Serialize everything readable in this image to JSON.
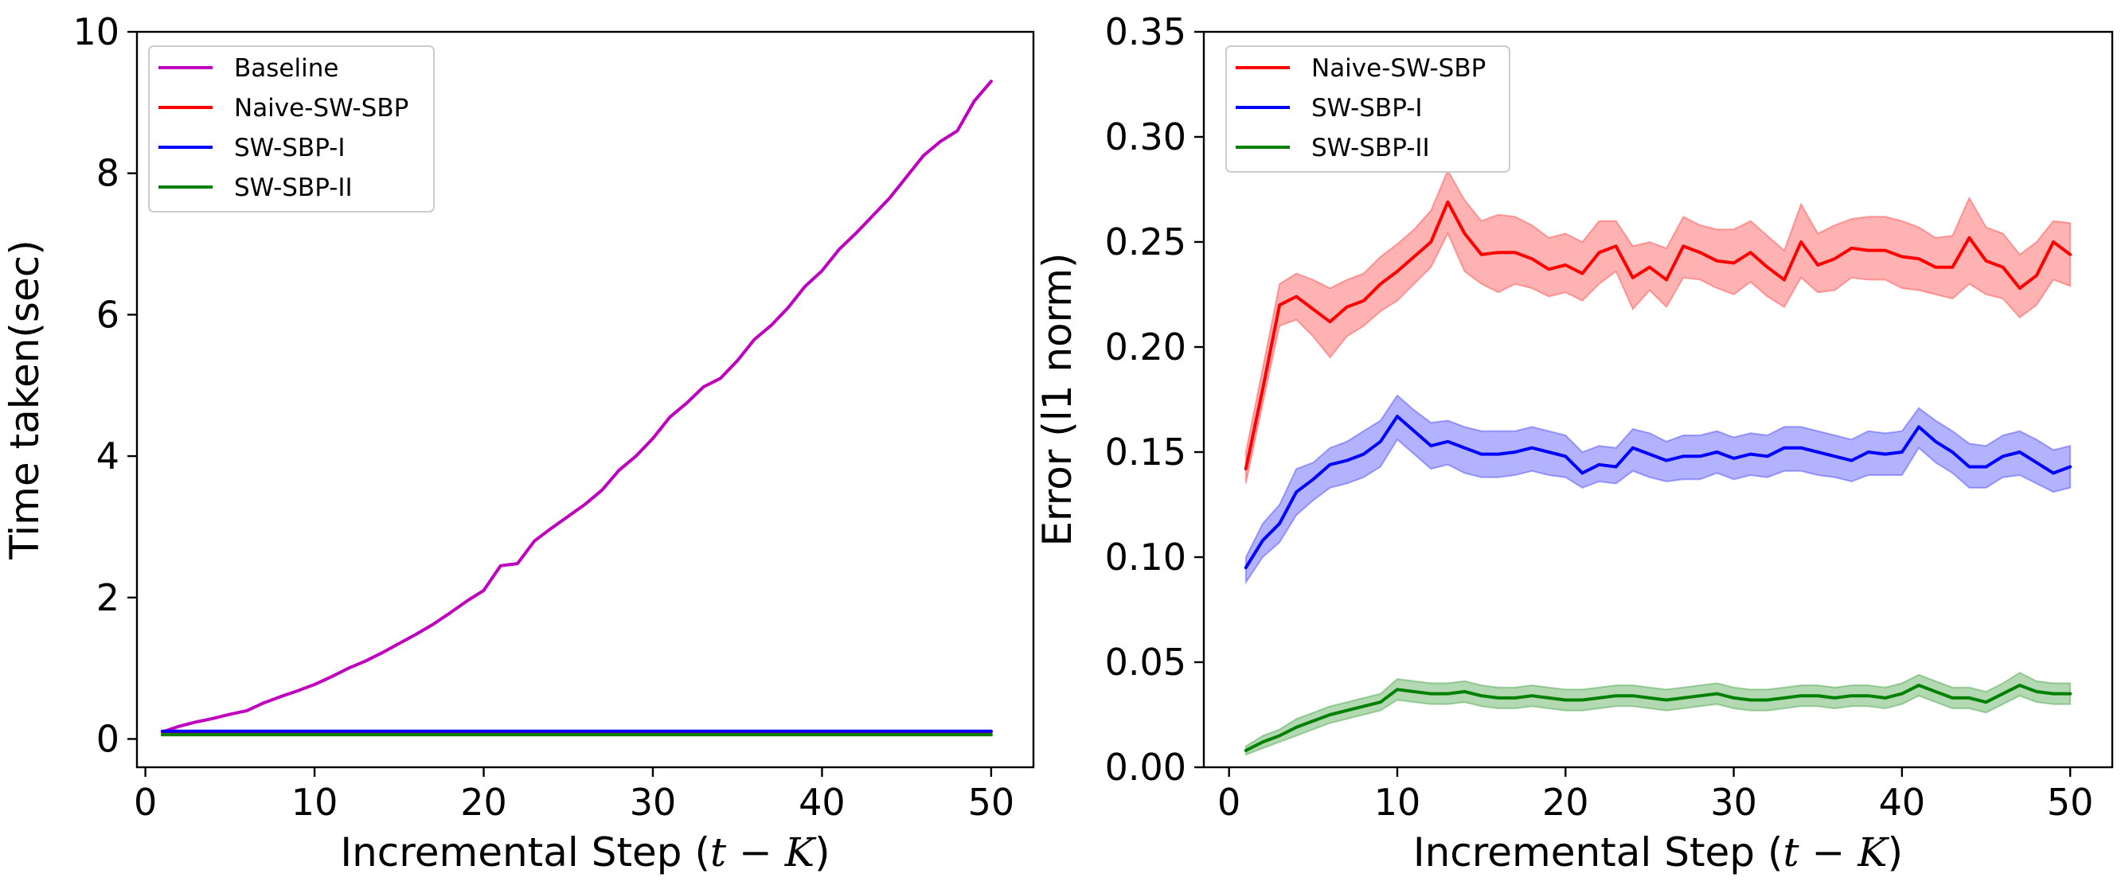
{
  "chart_data": [
    {
      "type": "line",
      "title": "",
      "xlabel_prefix": "Incremental Step (",
      "xlabel_math": "t − K",
      "xlabel_suffix": ")",
      "ylabel": "Time taken(sec)",
      "xlim": [
        -0.5,
        52.5
      ],
      "ylim": [
        -0.4,
        10.0
      ],
      "xticks": [
        0,
        10,
        20,
        30,
        40,
        50
      ],
      "xtick_labels": [
        "0",
        "10",
        "20",
        "30",
        "40",
        "50"
      ],
      "yticks": [
        0,
        2,
        4,
        6,
        8,
        10
      ],
      "ytick_labels": [
        "0",
        "2",
        "4",
        "6",
        "8",
        "10"
      ],
      "legend_position": "upper-left",
      "x": [
        1,
        2,
        3,
        4,
        5,
        6,
        7,
        8,
        9,
        10,
        11,
        12,
        13,
        14,
        15,
        16,
        17,
        18,
        19,
        20,
        21,
        22,
        23,
        24,
        25,
        26,
        27,
        28,
        29,
        30,
        31,
        32,
        33,
        34,
        35,
        36,
        37,
        38,
        39,
        40,
        41,
        42,
        43,
        44,
        45,
        46,
        47,
        48,
        49,
        50
      ],
      "series": [
        {
          "name": "Baseline",
          "color": "#bf00bf",
          "values": [
            0.1,
            0.18,
            0.24,
            0.29,
            0.35,
            0.4,
            0.51,
            0.6,
            0.68,
            0.77,
            0.88,
            1.0,
            1.1,
            1.22,
            1.35,
            1.48,
            1.62,
            1.78,
            1.95,
            2.1,
            2.45,
            2.48,
            2.8,
            2.98,
            3.15,
            3.32,
            3.52,
            3.8,
            4.0,
            4.25,
            4.55,
            4.75,
            4.98,
            5.1,
            5.35,
            5.65,
            5.85,
            6.1,
            6.4,
            6.62,
            6.92,
            7.15,
            7.4,
            7.65,
            7.95,
            8.25,
            8.45,
            8.6,
            9.02,
            9.3
          ]
        },
        {
          "name": "Naive-SW-SBP",
          "color": "#ff0000",
          "values": [
            0.1,
            0.1,
            0.1,
            0.1,
            0.1,
            0.1,
            0.1,
            0.1,
            0.1,
            0.1,
            0.1,
            0.1,
            0.1,
            0.1,
            0.1,
            0.1,
            0.1,
            0.1,
            0.1,
            0.1,
            0.1,
            0.1,
            0.1,
            0.1,
            0.1,
            0.1,
            0.1,
            0.1,
            0.1,
            0.1,
            0.1,
            0.1,
            0.1,
            0.1,
            0.1,
            0.1,
            0.1,
            0.1,
            0.1,
            0.1,
            0.1,
            0.1,
            0.1,
            0.1,
            0.1,
            0.1,
            0.1,
            0.1,
            0.1,
            0.1
          ]
        },
        {
          "name": "SW-SBP-I",
          "color": "#0000ff",
          "values": [
            0.11,
            0.11,
            0.11,
            0.11,
            0.11,
            0.11,
            0.11,
            0.11,
            0.11,
            0.11,
            0.11,
            0.11,
            0.11,
            0.11,
            0.11,
            0.11,
            0.11,
            0.11,
            0.11,
            0.11,
            0.11,
            0.11,
            0.11,
            0.11,
            0.11,
            0.11,
            0.11,
            0.11,
            0.11,
            0.11,
            0.11,
            0.11,
            0.11,
            0.11,
            0.11,
            0.11,
            0.11,
            0.11,
            0.11,
            0.11,
            0.11,
            0.11,
            0.11,
            0.11,
            0.11,
            0.11,
            0.11,
            0.11,
            0.11,
            0.11
          ]
        },
        {
          "name": "SW-SBP-II",
          "color": "#008000",
          "values": [
            0.06,
            0.06,
            0.06,
            0.06,
            0.06,
            0.06,
            0.06,
            0.06,
            0.06,
            0.06,
            0.06,
            0.06,
            0.06,
            0.06,
            0.06,
            0.06,
            0.06,
            0.06,
            0.06,
            0.06,
            0.06,
            0.06,
            0.06,
            0.06,
            0.06,
            0.06,
            0.06,
            0.06,
            0.06,
            0.06,
            0.06,
            0.06,
            0.06,
            0.06,
            0.06,
            0.06,
            0.06,
            0.06,
            0.06,
            0.06,
            0.06,
            0.06,
            0.06,
            0.06,
            0.06,
            0.06,
            0.06,
            0.06,
            0.06,
            0.06
          ]
        }
      ]
    },
    {
      "type": "line",
      "title": "",
      "xlabel_prefix": "Incremental Step (",
      "xlabel_math": "t − K",
      "xlabel_suffix": ")",
      "ylabel": "Error (l1 norm)",
      "xlim": [
        -1.5,
        52.5
      ],
      "ylim": [
        0.0,
        0.35
      ],
      "xticks": [
        0,
        10,
        20,
        30,
        40,
        50
      ],
      "xtick_labels": [
        "0",
        "10",
        "20",
        "30",
        "40",
        "50"
      ],
      "yticks": [
        0.0,
        0.05,
        0.1,
        0.15,
        0.2,
        0.25,
        0.3,
        0.35
      ],
      "ytick_labels": [
        "0.00",
        "0.05",
        "0.10",
        "0.15",
        "0.20",
        "0.25",
        "0.30",
        "0.35"
      ],
      "legend_position": "upper-left",
      "x": [
        1,
        2,
        3,
        4,
        5,
        6,
        7,
        8,
        9,
        10,
        11,
        12,
        13,
        14,
        15,
        16,
        17,
        18,
        19,
        20,
        21,
        22,
        23,
        24,
        25,
        26,
        27,
        28,
        29,
        30,
        31,
        32,
        33,
        34,
        35,
        36,
        37,
        38,
        39,
        40,
        41,
        42,
        43,
        44,
        45,
        46,
        47,
        48,
        49,
        50
      ],
      "series": [
        {
          "name": "Naive-SW-SBP",
          "color": "#ff0000",
          "values": [
            0.142,
            0.18,
            0.22,
            0.224,
            0.218,
            0.212,
            0.219,
            0.222,
            0.23,
            0.236,
            0.243,
            0.25,
            0.269,
            0.254,
            0.244,
            0.245,
            0.245,
            0.242,
            0.237,
            0.239,
            0.235,
            0.245,
            0.248,
            0.233,
            0.238,
            0.232,
            0.248,
            0.245,
            0.241,
            0.24,
            0.245,
            0.238,
            0.232,
            0.25,
            0.239,
            0.242,
            0.247,
            0.246,
            0.246,
            0.243,
            0.242,
            0.238,
            0.238,
            0.252,
            0.241,
            0.238,
            0.228,
            0.234,
            0.25,
            0.244
          ],
          "lower": [
            0.135,
            0.173,
            0.21,
            0.213,
            0.205,
            0.195,
            0.205,
            0.21,
            0.217,
            0.222,
            0.23,
            0.238,
            0.254,
            0.236,
            0.23,
            0.226,
            0.23,
            0.228,
            0.224,
            0.226,
            0.222,
            0.23,
            0.236,
            0.218,
            0.227,
            0.219,
            0.233,
            0.232,
            0.228,
            0.225,
            0.231,
            0.224,
            0.219,
            0.233,
            0.226,
            0.227,
            0.233,
            0.232,
            0.232,
            0.228,
            0.227,
            0.225,
            0.223,
            0.23,
            0.225,
            0.223,
            0.214,
            0.22,
            0.232,
            0.229
          ],
          "upper": [
            0.15,
            0.19,
            0.23,
            0.235,
            0.232,
            0.228,
            0.232,
            0.235,
            0.243,
            0.249,
            0.256,
            0.265,
            0.284,
            0.27,
            0.26,
            0.263,
            0.262,
            0.258,
            0.252,
            0.254,
            0.25,
            0.26,
            0.26,
            0.248,
            0.25,
            0.247,
            0.262,
            0.258,
            0.256,
            0.256,
            0.26,
            0.253,
            0.246,
            0.268,
            0.254,
            0.258,
            0.261,
            0.262,
            0.262,
            0.26,
            0.257,
            0.252,
            0.253,
            0.271,
            0.257,
            0.254,
            0.244,
            0.25,
            0.26,
            0.259
          ]
        },
        {
          "name": "SW-SBP-I",
          "color": "#0000ff",
          "values": [
            0.095,
            0.108,
            0.116,
            0.131,
            0.137,
            0.144,
            0.146,
            0.149,
            0.155,
            0.167,
            0.16,
            0.153,
            0.155,
            0.152,
            0.149,
            0.149,
            0.15,
            0.152,
            0.15,
            0.148,
            0.14,
            0.144,
            0.143,
            0.152,
            0.149,
            0.146,
            0.148,
            0.148,
            0.15,
            0.147,
            0.149,
            0.148,
            0.152,
            0.152,
            0.15,
            0.148,
            0.146,
            0.15,
            0.149,
            0.15,
            0.162,
            0.155,
            0.15,
            0.143,
            0.143,
            0.148,
            0.15,
            0.145,
            0.14,
            0.143
          ],
          "lower": [
            0.088,
            0.1,
            0.107,
            0.12,
            0.127,
            0.133,
            0.135,
            0.138,
            0.143,
            0.156,
            0.149,
            0.142,
            0.144,
            0.14,
            0.138,
            0.138,
            0.139,
            0.141,
            0.139,
            0.138,
            0.133,
            0.136,
            0.135,
            0.141,
            0.138,
            0.136,
            0.137,
            0.137,
            0.14,
            0.137,
            0.139,
            0.138,
            0.141,
            0.141,
            0.139,
            0.138,
            0.136,
            0.139,
            0.139,
            0.139,
            0.152,
            0.145,
            0.14,
            0.133,
            0.133,
            0.138,
            0.139,
            0.135,
            0.131,
            0.133
          ],
          "upper": [
            0.1,
            0.116,
            0.125,
            0.142,
            0.145,
            0.152,
            0.155,
            0.16,
            0.165,
            0.177,
            0.17,
            0.164,
            0.165,
            0.162,
            0.16,
            0.16,
            0.16,
            0.162,
            0.16,
            0.158,
            0.15,
            0.153,
            0.152,
            0.161,
            0.159,
            0.155,
            0.158,
            0.158,
            0.16,
            0.157,
            0.159,
            0.158,
            0.162,
            0.162,
            0.16,
            0.158,
            0.156,
            0.16,
            0.159,
            0.16,
            0.171,
            0.165,
            0.16,
            0.154,
            0.153,
            0.158,
            0.16,
            0.156,
            0.151,
            0.153
          ]
        },
        {
          "name": "SW-SBP-II",
          "color": "#008000",
          "values": [
            0.008,
            0.012,
            0.015,
            0.019,
            0.022,
            0.025,
            0.027,
            0.029,
            0.031,
            0.037,
            0.036,
            0.035,
            0.035,
            0.036,
            0.034,
            0.033,
            0.033,
            0.034,
            0.033,
            0.032,
            0.032,
            0.033,
            0.034,
            0.034,
            0.033,
            0.032,
            0.033,
            0.034,
            0.035,
            0.033,
            0.032,
            0.032,
            0.033,
            0.034,
            0.034,
            0.033,
            0.034,
            0.034,
            0.033,
            0.035,
            0.039,
            0.036,
            0.033,
            0.033,
            0.031,
            0.035,
            0.039,
            0.036,
            0.035,
            0.035
          ],
          "lower": [
            0.006,
            0.009,
            0.012,
            0.015,
            0.018,
            0.021,
            0.023,
            0.025,
            0.027,
            0.032,
            0.031,
            0.03,
            0.03,
            0.031,
            0.029,
            0.028,
            0.028,
            0.029,
            0.028,
            0.027,
            0.027,
            0.028,
            0.029,
            0.029,
            0.028,
            0.027,
            0.028,
            0.029,
            0.03,
            0.028,
            0.027,
            0.027,
            0.028,
            0.029,
            0.029,
            0.028,
            0.029,
            0.029,
            0.028,
            0.03,
            0.034,
            0.031,
            0.028,
            0.028,
            0.026,
            0.03,
            0.034,
            0.031,
            0.03,
            0.03
          ],
          "upper": [
            0.01,
            0.015,
            0.018,
            0.023,
            0.026,
            0.029,
            0.031,
            0.033,
            0.035,
            0.042,
            0.041,
            0.04,
            0.04,
            0.041,
            0.039,
            0.038,
            0.038,
            0.039,
            0.038,
            0.037,
            0.037,
            0.038,
            0.039,
            0.039,
            0.038,
            0.037,
            0.038,
            0.039,
            0.04,
            0.038,
            0.037,
            0.037,
            0.038,
            0.039,
            0.039,
            0.038,
            0.039,
            0.039,
            0.038,
            0.04,
            0.044,
            0.041,
            0.038,
            0.038,
            0.036,
            0.04,
            0.045,
            0.041,
            0.04,
            0.04
          ]
        }
      ]
    }
  ]
}
